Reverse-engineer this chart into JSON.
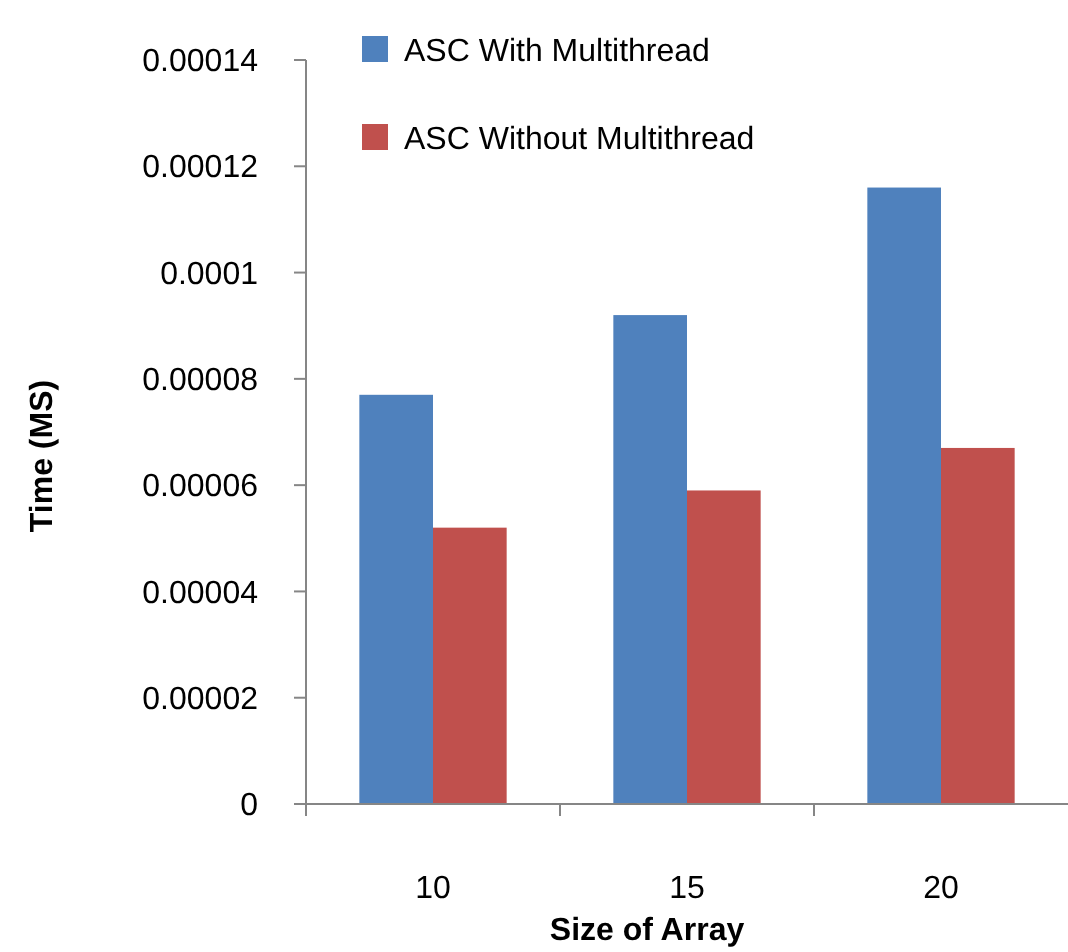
{
  "chart_data": {
    "type": "bar",
    "xlabel": "Size of Array",
    "ylabel": "Time (MS)",
    "categories": [
      "10",
      "15",
      "20"
    ],
    "series": [
      {
        "name": "ASC With Multithread",
        "color": "#4f81bd",
        "values": [
          7.7e-05,
          9.2e-05,
          0.000116
        ]
      },
      {
        "name": "ASC Without Multithread",
        "color": "#c0504d",
        "values": [
          5.2e-05,
          5.9e-05,
          6.7e-05
        ]
      }
    ],
    "ylim": [
      0,
      0.00014
    ],
    "yticks": [
      0,
      {
        "value": 2e-05,
        "label": "0.00002"
      },
      {
        "value": 4e-05,
        "label": "0.00004"
      },
      {
        "value": 6e-05,
        "label": "0.00006"
      },
      {
        "value": 8e-05,
        "label": "0.00008"
      },
      0.0001,
      0.00012,
      0.00014
    ],
    "legend": "top",
    "grid": false
  }
}
